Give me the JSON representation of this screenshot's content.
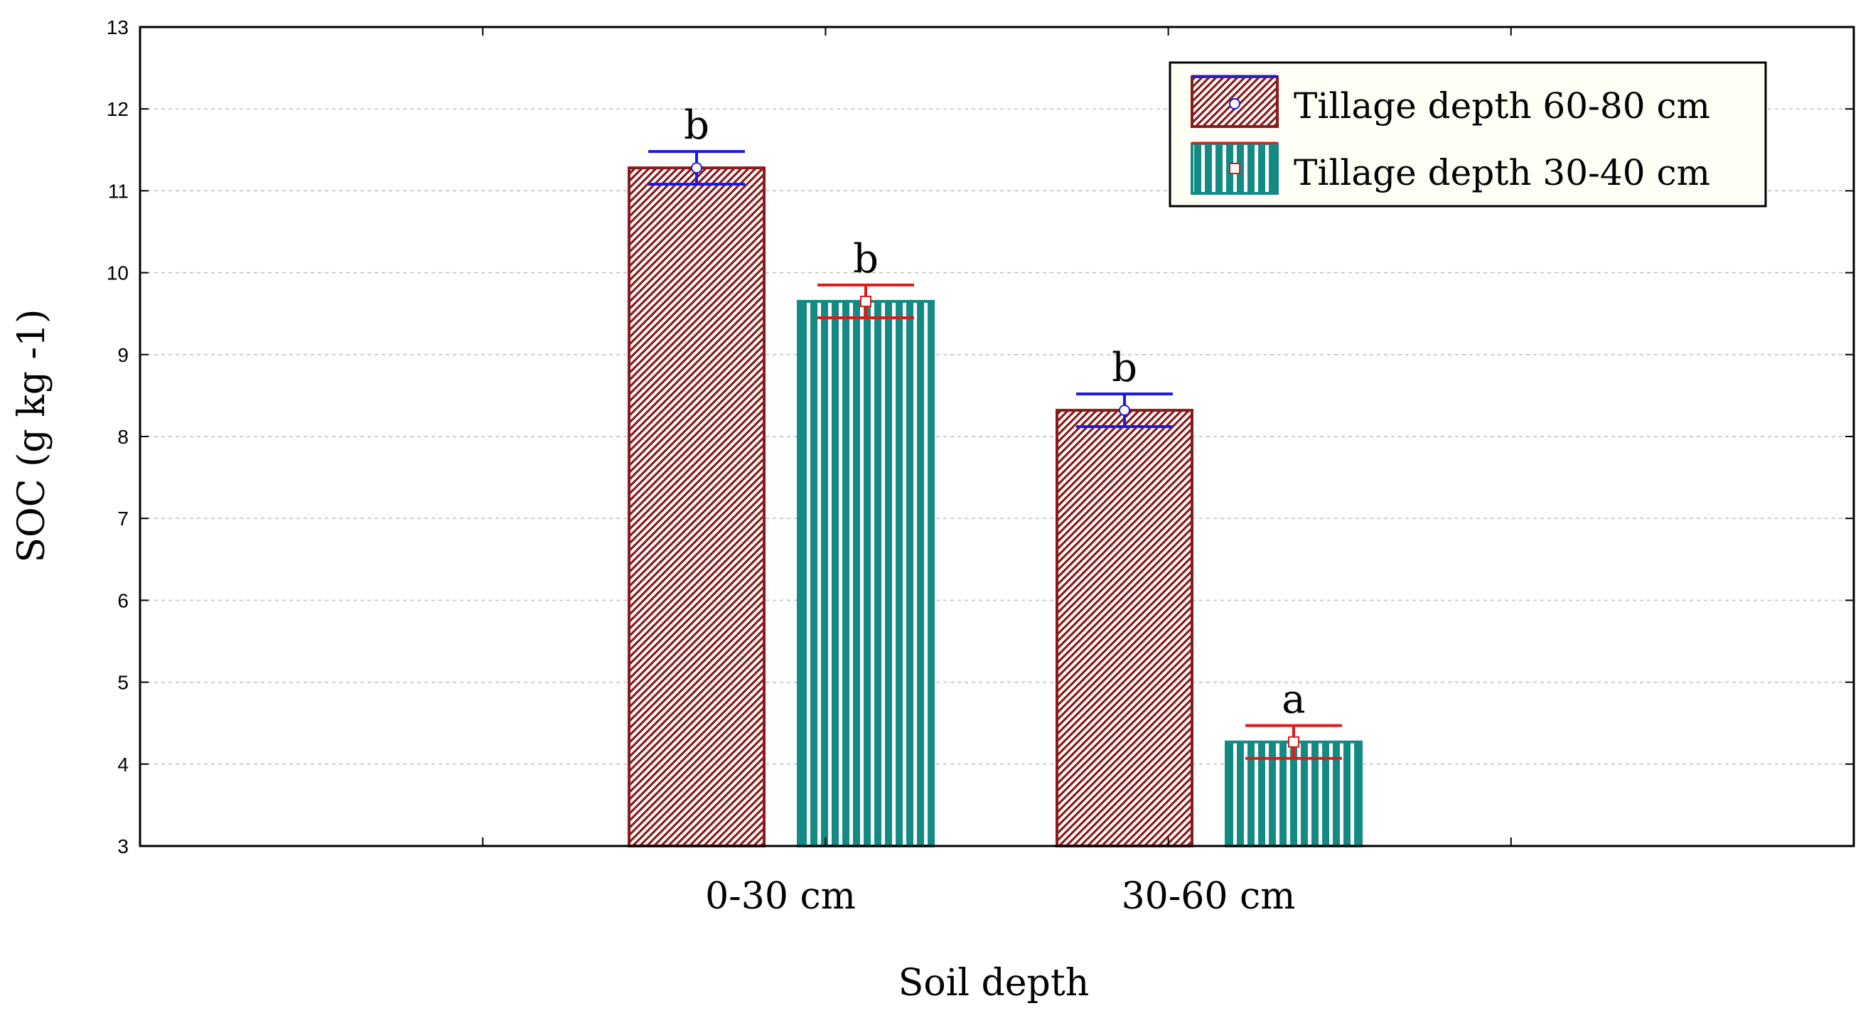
{
  "chart_data": {
    "type": "bar",
    "categories": [
      "0-30 cm",
      "30-60 cm"
    ],
    "xlabel": "Soil depth",
    "ylabel": "SOC (g kg -1)",
    "ylim": [
      3,
      13
    ],
    "yticks": [
      3,
      4,
      5,
      6,
      7,
      8,
      9,
      10,
      11,
      12,
      13
    ],
    "grid": true,
    "legend_position": "top-right",
    "series": [
      {
        "name": "Tillage depth 60-80 cm",
        "values": [
          11.28,
          8.32
        ],
        "errors": [
          0.2,
          0.2
        ],
        "letters": [
          "b",
          "b"
        ],
        "fill_color": "#8b1a1a",
        "error_color": "#1a1add",
        "pattern": "diagonal-hatch"
      },
      {
        "name": "Tillage depth 30-40 cm",
        "values": [
          9.65,
          4.27
        ],
        "errors": [
          0.2,
          0.2
        ],
        "letters": [
          "b",
          "a"
        ],
        "fill_color": "#138a84",
        "error_color": "#e01919",
        "pattern": "vertical-stripes"
      }
    ]
  }
}
